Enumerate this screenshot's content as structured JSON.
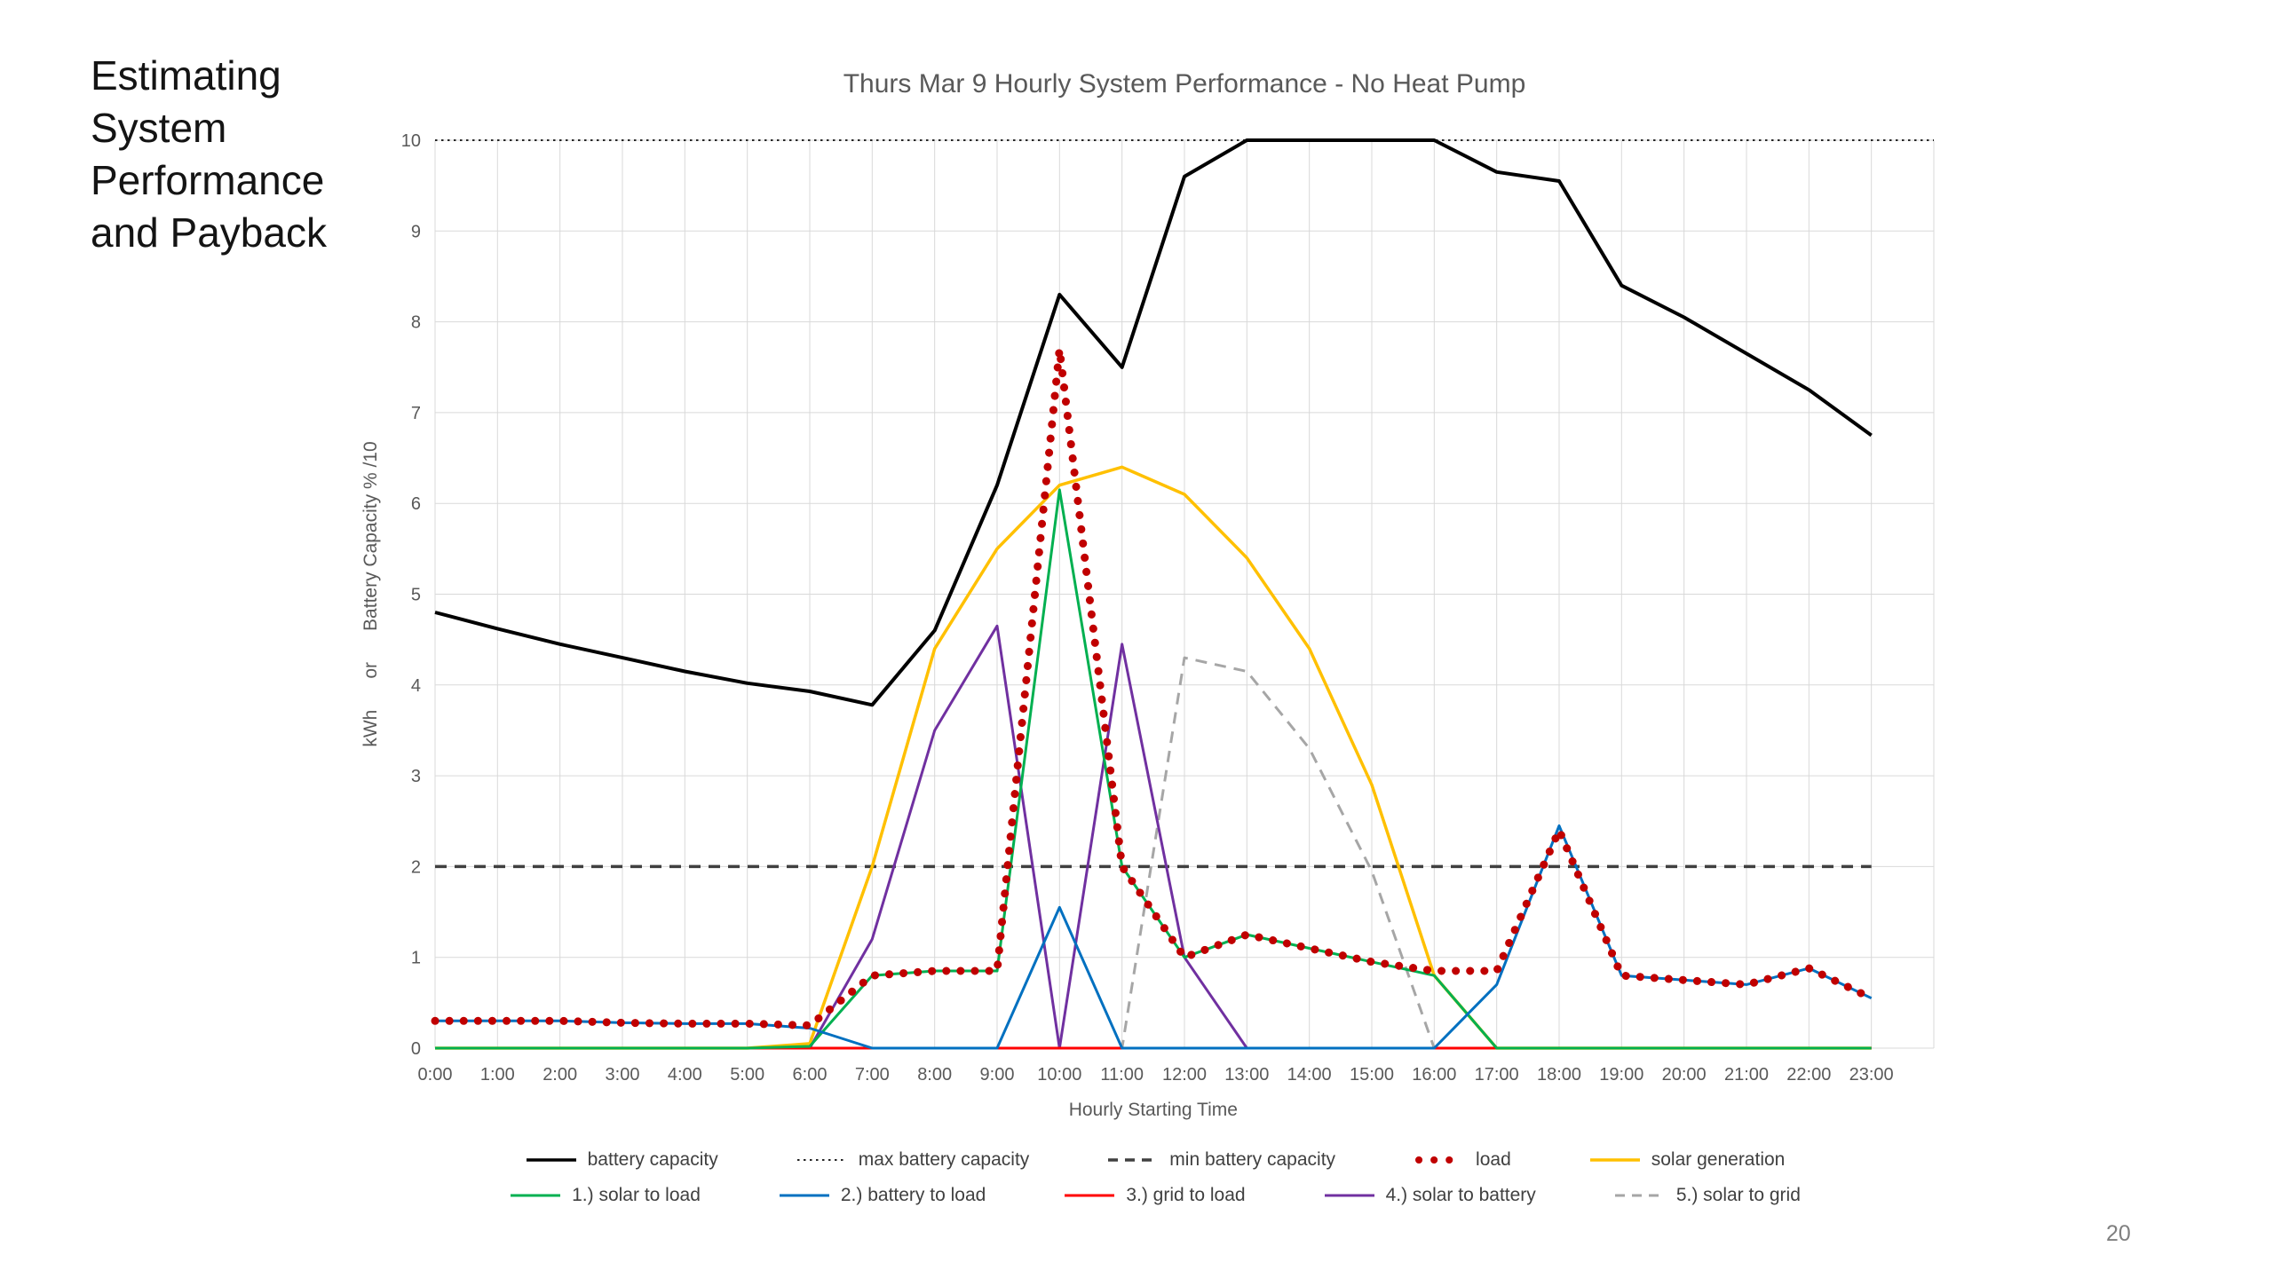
{
  "slide": {
    "heading_lines": [
      "Estimating",
      "System",
      "Performance",
      "and Payback"
    ],
    "page_number": "20"
  },
  "chart_data": {
    "type": "line",
    "title": "Thurs Mar 9 Hourly System Performance - No Heat Pump",
    "xlabel": "Hourly Starting Time",
    "ylabel": "kWh      or      Battery Capacity % /10",
    "ylim": [
      0,
      10
    ],
    "y_ticks": [
      0,
      1,
      2,
      3,
      4,
      5,
      6,
      7,
      8,
      9,
      10
    ],
    "grid": true,
    "legend_position": "bottom",
    "x_categories": [
      "0:00",
      "1:00",
      "2:00",
      "3:00",
      "4:00",
      "5:00",
      "6:00",
      "7:00",
      "8:00",
      "9:00",
      "10:00",
      "11:00",
      "12:00",
      "13:00",
      "14:00",
      "15:00",
      "16:00",
      "17:00",
      "18:00",
      "19:00",
      "20:00",
      "21:00",
      "22:00",
      "23:00"
    ],
    "series": [
      {
        "name": "battery capacity",
        "color": "#000000",
        "style": "solid",
        "width": 4,
        "values": [
          4.8,
          4.62,
          4.45,
          4.3,
          4.15,
          4.02,
          3.93,
          3.78,
          4.6,
          6.2,
          8.3,
          7.5,
          9.6,
          10,
          10,
          10,
          10,
          9.65,
          9.55,
          8.4,
          8.05,
          7.65,
          7.25,
          6.75
        ]
      },
      {
        "name": "max battery capacity",
        "color": "#262626",
        "style": "dotted",
        "width": 2,
        "values": [
          10,
          10,
          10,
          10,
          10,
          10,
          10,
          10,
          10,
          10,
          10,
          10,
          10,
          10,
          10,
          10,
          10,
          10,
          10,
          10,
          10,
          10,
          10,
          10
        ]
      },
      {
        "name": "min battery capacity",
        "color": "#404040",
        "style": "dashed",
        "width": 3.5,
        "values": [
          2,
          2,
          2,
          2,
          2,
          2,
          2,
          2,
          2,
          2,
          2,
          2,
          2,
          2,
          2,
          2,
          2,
          2,
          2,
          2,
          2,
          2,
          2,
          2
        ]
      },
      {
        "name": "load",
        "color": "#C00000",
        "style": "dots",
        "width": 9,
        "values": [
          0.3,
          0.3,
          0.3,
          0.28,
          0.27,
          0.27,
          0.25,
          0.8,
          0.85,
          0.85,
          7.7,
          2.0,
          1.0,
          1.25,
          1.1,
          0.95,
          0.85,
          0.85,
          2.4,
          0.8,
          0.75,
          0.7,
          0.88,
          0.55
        ]
      },
      {
        "name": "solar generation",
        "color": "#FFC000",
        "style": "solid",
        "width": 3.5,
        "values": [
          0,
          0,
          0,
          0,
          0,
          0,
          0.05,
          2.0,
          4.4,
          5.5,
          6.2,
          6.4,
          6.1,
          5.4,
          4.4,
          2.9,
          0.8,
          0,
          0,
          0,
          0,
          0,
          0,
          0
        ]
      },
      {
        "name": "1.) solar to load",
        "color": "#00B050",
        "style": "solid",
        "width": 3,
        "values": [
          0,
          0,
          0,
          0,
          0,
          0,
          0.02,
          0.8,
          0.85,
          0.85,
          6.15,
          2.0,
          1.0,
          1.25,
          1.1,
          0.95,
          0.8,
          0,
          0,
          0,
          0,
          0,
          0,
          0
        ]
      },
      {
        "name": "2.) battery to load",
        "color": "#0070C0",
        "style": "solid",
        "width": 3,
        "values": [
          0.3,
          0.3,
          0.3,
          0.28,
          0.27,
          0.27,
          0.22,
          0,
          0,
          0,
          1.55,
          0,
          0,
          0,
          0,
          0,
          0,
          0.7,
          2.45,
          0.8,
          0.75,
          0.7,
          0.88,
          0.55
        ]
      },
      {
        "name": "3.) grid to load",
        "color": "#FF0000",
        "style": "solid",
        "width": 3,
        "values": [
          0,
          0,
          0,
          0,
          0,
          0,
          0,
          0,
          0,
          0,
          0,
          0,
          0,
          0,
          0,
          0,
          0,
          0,
          0,
          0,
          0,
          0,
          0,
          0
        ]
      },
      {
        "name": "4.) solar to battery",
        "color": "#7030A0",
        "style": "solid",
        "width": 3,
        "values": [
          0,
          0,
          0,
          0,
          0,
          0,
          0,
          1.2,
          3.5,
          4.65,
          0,
          4.45,
          1.0,
          0,
          0,
          0,
          0,
          0,
          0,
          0,
          0,
          0,
          0,
          0
        ]
      },
      {
        "name": "5.) solar to grid",
        "color": "#A6A6A6",
        "style": "dashed",
        "width": 3,
        "values": [
          0,
          0,
          0,
          0,
          0,
          0,
          0,
          0,
          0,
          0,
          0,
          0,
          4.3,
          4.15,
          3.3,
          1.95,
          0,
          0,
          0,
          0,
          0,
          0,
          0,
          0
        ]
      }
    ],
    "legend_rows": [
      [
        0,
        1,
        2,
        3,
        4
      ],
      [
        5,
        6,
        7,
        8,
        9
      ]
    ]
  }
}
